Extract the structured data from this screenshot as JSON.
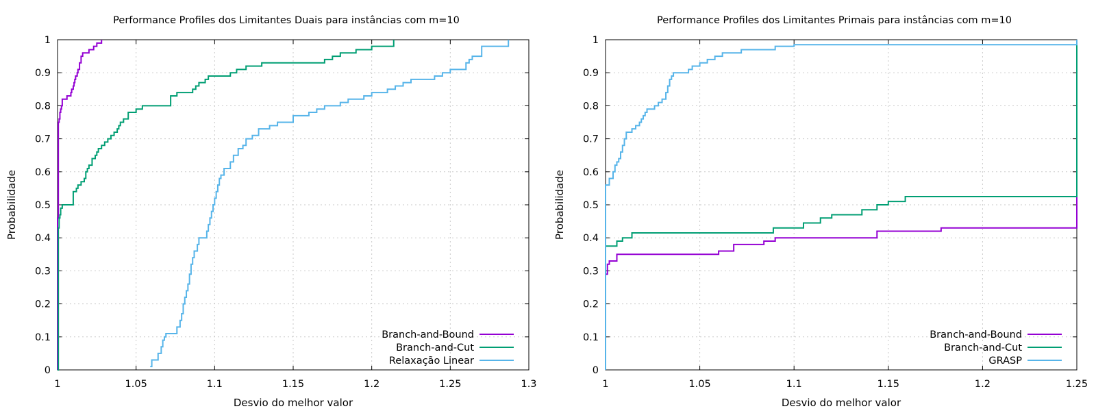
{
  "chart_data": [
    {
      "type": "line",
      "step": true,
      "title": "Performance Profiles dos Limitantes Duais para instâncias com m=10",
      "xlabel": "Desvio do melhor valor",
      "ylabel": "Probabilidade",
      "xlim": [
        1,
        1.3
      ],
      "ylim": [
        0,
        1
      ],
      "xticks": [
        "1",
        "1.05",
        "1.1",
        "1.15",
        "1.2",
        "1.25",
        "1.3"
      ],
      "yticks": [
        "0",
        "0.1",
        "0.2",
        "0.3",
        "0.4",
        "0.5",
        "0.6",
        "0.7",
        "0.8",
        "0.9",
        "1"
      ],
      "grid": true,
      "legend_position": "bottom-right",
      "series": [
        {
          "name": "Branch-and-Bound",
          "color": "#9400d3",
          "x": [
            1.0,
            1.0,
            1.0005,
            1.001,
            1.0015,
            1.002,
            1.0025,
            1.003,
            1.004,
            1.005,
            1.006,
            1.008,
            1.0085,
            1.009,
            1.01,
            1.0105,
            1.011,
            1.0115,
            1.012,
            1.0125,
            1.013,
            1.014,
            1.015,
            1.016,
            1.017,
            1.018,
            1.019,
            1.02,
            1.021,
            1.022,
            1.023,
            1.025,
            1.028
          ],
          "y": [
            0.0,
            0.46,
            0.75,
            0.76,
            0.78,
            0.79,
            0.8,
            0.82,
            0.82,
            0.82,
            0.83,
            0.83,
            0.84,
            0.85,
            0.86,
            0.87,
            0.88,
            0.89,
            0.89,
            0.9,
            0.91,
            0.93,
            0.95,
            0.96,
            0.96,
            0.96,
            0.96,
            0.97,
            0.97,
            0.97,
            0.98,
            0.99,
            1.0
          ]
        },
        {
          "name": "Branch-and-Cut",
          "color": "#009e73",
          "x": [
            1.0,
            1.0005,
            1.001,
            1.0015,
            1.002,
            1.003,
            1.004,
            1.005,
            1.006,
            1.008,
            1.01,
            1.012,
            1.013,
            1.015,
            1.017,
            1.018,
            1.019,
            1.02,
            1.022,
            1.024,
            1.025,
            1.026,
            1.028,
            1.03,
            1.032,
            1.034,
            1.036,
            1.038,
            1.039,
            1.04,
            1.042,
            1.045,
            1.05,
            1.054,
            1.07,
            1.072,
            1.076,
            1.086,
            1.088,
            1.09,
            1.094,
            1.096,
            1.1,
            1.11,
            1.114,
            1.12,
            1.13,
            1.16,
            1.17,
            1.175,
            1.18,
            1.19,
            1.2,
            1.214
          ],
          "y": [
            0.0,
            0.43,
            0.46,
            0.47,
            0.49,
            0.5,
            0.5,
            0.5,
            0.5,
            0.5,
            0.54,
            0.55,
            0.56,
            0.57,
            0.58,
            0.6,
            0.61,
            0.62,
            0.64,
            0.65,
            0.66,
            0.67,
            0.68,
            0.69,
            0.7,
            0.71,
            0.72,
            0.73,
            0.74,
            0.75,
            0.76,
            0.78,
            0.79,
            0.8,
            0.8,
            0.83,
            0.84,
            0.85,
            0.86,
            0.87,
            0.88,
            0.89,
            0.89,
            0.9,
            0.91,
            0.92,
            0.93,
            0.93,
            0.94,
            0.95,
            0.96,
            0.97,
            0.98,
            1.0
          ]
        },
        {
          "name": "Relaxação Linear",
          "color": "#56b4e9",
          "x": [
            1.059,
            1.06,
            1.064,
            1.066,
            1.067,
            1.068,
            1.069,
            1.07,
            1.076,
            1.078,
            1.079,
            1.08,
            1.081,
            1.082,
            1.083,
            1.084,
            1.085,
            1.086,
            1.087,
            1.088,
            1.089,
            1.09,
            1.095,
            1.096,
            1.097,
            1.098,
            1.099,
            1.1,
            1.101,
            1.102,
            1.103,
            1.104,
            1.106,
            1.108,
            1.11,
            1.112,
            1.115,
            1.118,
            1.12,
            1.124,
            1.128,
            1.135,
            1.14,
            1.15,
            1.16,
            1.165,
            1.17,
            1.175,
            1.18,
            1.185,
            1.195,
            1.2,
            1.21,
            1.215,
            1.22,
            1.225,
            1.24,
            1.245,
            1.25,
            1.26,
            1.262,
            1.264,
            1.27,
            1.287
          ],
          "y": [
            0.01,
            0.03,
            0.05,
            0.07,
            0.09,
            0.1,
            0.11,
            0.11,
            0.13,
            0.15,
            0.17,
            0.2,
            0.22,
            0.24,
            0.26,
            0.29,
            0.32,
            0.34,
            0.36,
            0.36,
            0.38,
            0.4,
            0.42,
            0.44,
            0.46,
            0.48,
            0.5,
            0.52,
            0.54,
            0.56,
            0.58,
            0.59,
            0.61,
            0.61,
            0.63,
            0.65,
            0.67,
            0.68,
            0.7,
            0.71,
            0.73,
            0.74,
            0.75,
            0.77,
            0.78,
            0.79,
            0.8,
            0.8,
            0.81,
            0.82,
            0.83,
            0.84,
            0.85,
            0.86,
            0.87,
            0.88,
            0.89,
            0.9,
            0.91,
            0.93,
            0.94,
            0.95,
            0.98,
            1.0
          ]
        }
      ]
    },
    {
      "type": "line",
      "step": true,
      "title": "Performance Profiles dos Limitantes Primais para instâncias com m=10",
      "xlabel": "Desvio do melhor valor",
      "ylabel": "Probabilidade",
      "xlim": [
        1,
        1.25
      ],
      "ylim": [
        0,
        1
      ],
      "xticks": [
        "1",
        "1.05",
        "1.1",
        "1.15",
        "1.2",
        "1.25"
      ],
      "yticks": [
        "0",
        "0.1",
        "0.2",
        "0.3",
        "0.4",
        "0.5",
        "0.6",
        "0.7",
        "0.8",
        "0.9",
        "1"
      ],
      "grid": true,
      "legend_position": "bottom-right",
      "series": [
        {
          "name": "Branch-and-Bound",
          "color": "#9400d3",
          "x": [
            1.0,
            1.0,
            1.001,
            1.002,
            1.006,
            1.06,
            1.068,
            1.084,
            1.09,
            1.144,
            1.178,
            1.25,
            1.25
          ],
          "y": [
            0.0,
            0.29,
            0.32,
            0.33,
            0.35,
            0.36,
            0.38,
            0.39,
            0.4,
            0.42,
            0.43,
            0.43,
            1.0
          ]
        },
        {
          "name": "Branch-and-Cut",
          "color": "#009e73",
          "x": [
            1.0,
            1.0,
            1.006,
            1.009,
            1.014,
            1.089,
            1.105,
            1.114,
            1.12,
            1.136,
            1.144,
            1.15,
            1.159,
            1.25,
            1.25
          ],
          "y": [
            0.0,
            0.375,
            0.39,
            0.4,
            0.415,
            0.43,
            0.445,
            0.46,
            0.47,
            0.485,
            0.5,
            0.51,
            0.525,
            0.525,
            1.0
          ]
        },
        {
          "name": "GRASP",
          "color": "#56b4e9",
          "x": [
            1.0,
            1.0,
            1.002,
            1.004,
            1.005,
            1.006,
            1.007,
            1.008,
            1.009,
            1.01,
            1.011,
            1.012,
            1.014,
            1.016,
            1.018,
            1.019,
            1.02,
            1.021,
            1.022,
            1.024,
            1.026,
            1.028,
            1.03,
            1.032,
            1.033,
            1.034,
            1.035,
            1.036,
            1.044,
            1.046,
            1.05,
            1.054,
            1.058,
            1.062,
            1.072,
            1.08,
            1.09,
            1.1,
            1.25,
            1.25
          ],
          "y": [
            0.0,
            0.56,
            0.58,
            0.6,
            0.62,
            0.63,
            0.64,
            0.66,
            0.68,
            0.7,
            0.72,
            0.72,
            0.73,
            0.74,
            0.75,
            0.76,
            0.77,
            0.78,
            0.79,
            0.79,
            0.8,
            0.81,
            0.82,
            0.84,
            0.86,
            0.88,
            0.89,
            0.9,
            0.91,
            0.92,
            0.93,
            0.94,
            0.95,
            0.96,
            0.97,
            0.97,
            0.98,
            0.985,
            0.985,
            1.0
          ]
        }
      ]
    }
  ]
}
